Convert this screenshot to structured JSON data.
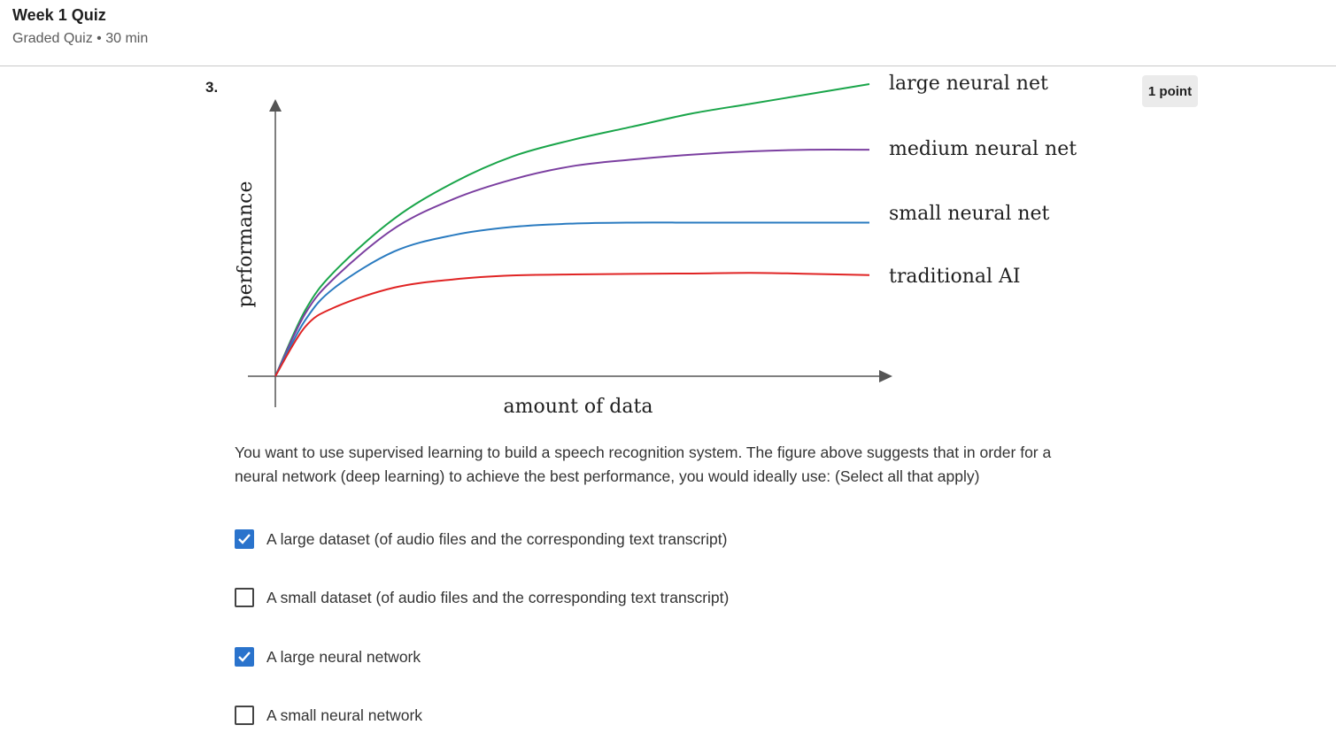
{
  "header": {
    "title": "Week 1 Quiz",
    "meta": "Graded Quiz • 30 min"
  },
  "question": {
    "number": "3.",
    "points": "1 point",
    "prompt": "You want to use supervised learning to build a speech recognition system. The figure above suggests that in order for a neural network (deep learning) to achieve the best performance, you would ideally use: (Select all that apply)",
    "options": [
      {
        "label": "A large dataset (of audio files and the corresponding text transcript)",
        "checked": true
      },
      {
        "label": "A small dataset (of audio files and the corresponding text transcript)",
        "checked": false
      },
      {
        "label": "A large neural network",
        "checked": true
      },
      {
        "label": "A small neural network",
        "checked": false
      }
    ]
  },
  "chart_data": {
    "type": "line",
    "xlabel": "amount of data",
    "ylabel": "performance",
    "x": [
      0,
      5,
      10,
      20,
      30,
      40,
      50,
      60,
      70,
      80,
      90,
      100
    ],
    "series": [
      {
        "name": "large neural net",
        "color": "#1aa54a",
        "values": [
          0,
          20,
          32,
          48,
          59,
          67,
          72,
          76,
          80,
          83,
          86,
          89
        ]
      },
      {
        "name": "medium neural net",
        "color": "#7b3fa0",
        "values": [
          0,
          19,
          30,
          45,
          54,
          60,
          64,
          66,
          67.5,
          68.5,
          69,
          69
        ]
      },
      {
        "name": "small neural net",
        "color": "#2a7bc0",
        "values": [
          0,
          17,
          27,
          38,
          43,
          45.5,
          46.5,
          46.8,
          46.8,
          46.8,
          46.8,
          46.8
        ]
      },
      {
        "name": "traditional AI",
        "color": "#e02424",
        "values": [
          0,
          15,
          21,
          27,
          29.5,
          30.7,
          31,
          31.2,
          31.3,
          31.5,
          31.2,
          30.8
        ]
      }
    ],
    "grid": false
  }
}
